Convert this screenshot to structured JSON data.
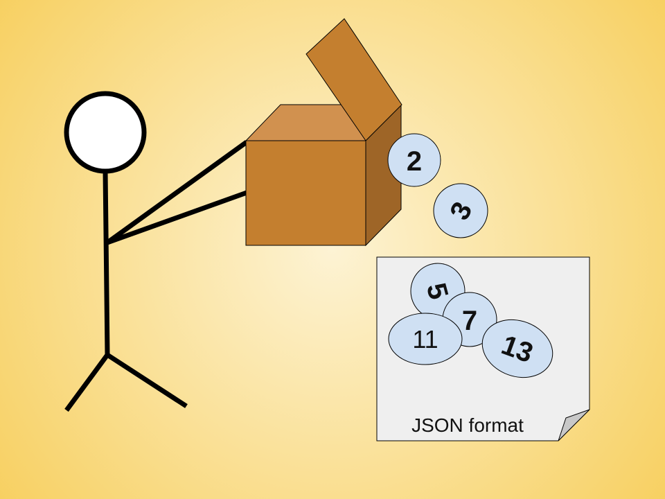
{
  "colors": {
    "background_center": "#fdf3d4",
    "background_edge": "#f7cf5e",
    "box_front": "#c47f2f",
    "box_top": "#d1914f",
    "box_side": "#9e6527",
    "ball_fill": "#cfe0f3",
    "paper_fill": "#efefef",
    "paper_fold": "#c8c8c8",
    "stroke": "#000000"
  },
  "balls": [
    {
      "label": "2"
    },
    {
      "label": "3"
    },
    {
      "label": "5"
    },
    {
      "label": "7"
    },
    {
      "label": "11"
    },
    {
      "label": "13"
    }
  ],
  "document": {
    "caption": "JSON format"
  }
}
